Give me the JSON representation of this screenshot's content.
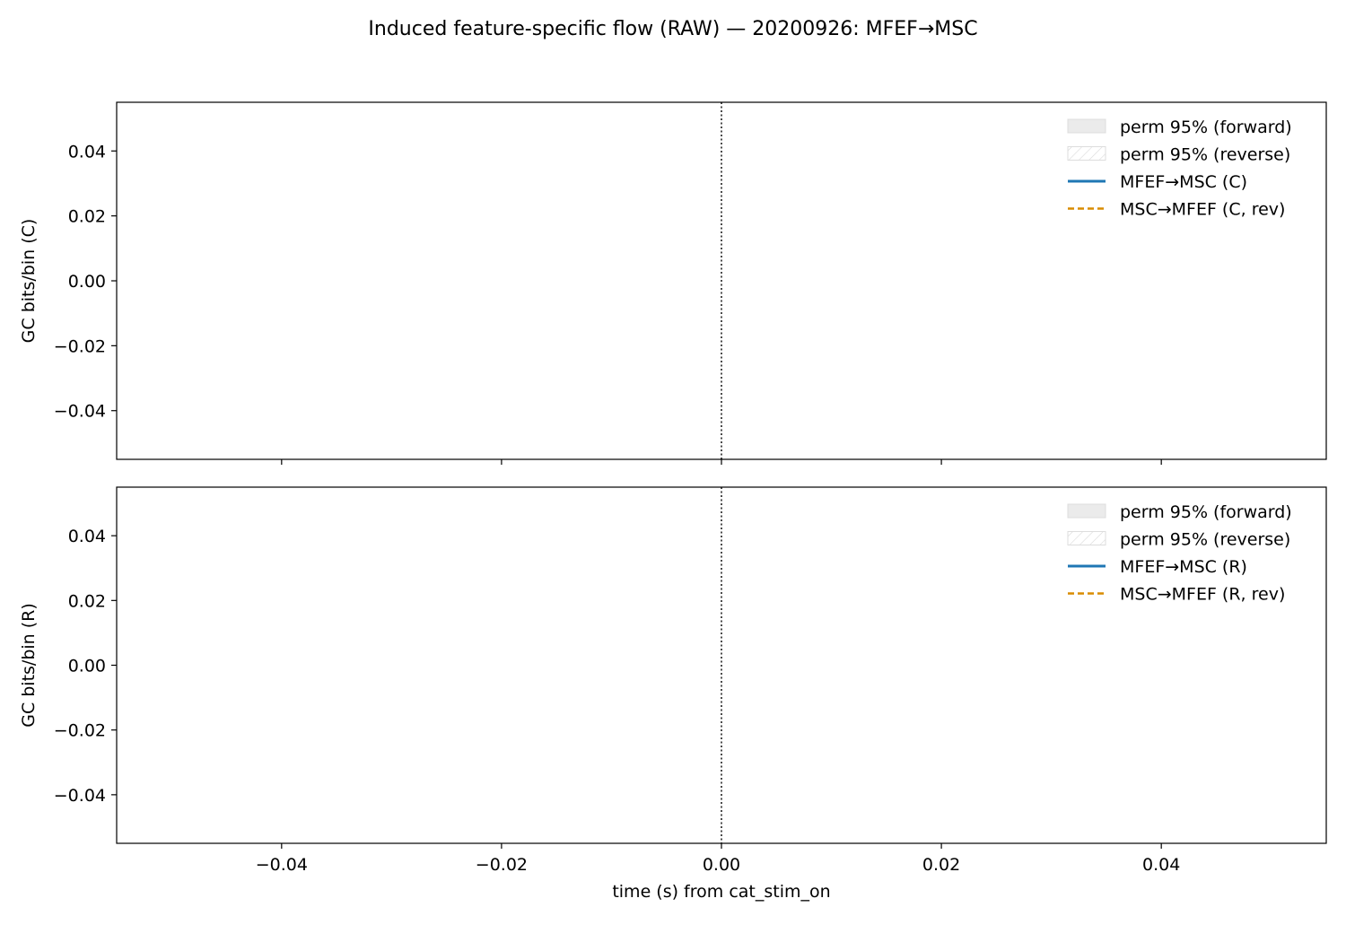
{
  "figure": {
    "title": "Induced feature-specific flow (RAW) — 20200926: MFEF→MSC"
  },
  "colors": {
    "forward": "#1f77b4",
    "reverse": "#d98c00",
    "perm_fill": "#ebebeb",
    "perm_edge": "#dddddd"
  },
  "chart_data": [
    {
      "type": "line",
      "panel": "top",
      "xlabel": "",
      "ylabel": "GC bits/bin (C)",
      "xlim": [
        -0.055,
        0.055
      ],
      "ylim": [
        -0.055,
        0.055
      ],
      "xticks": [
        -0.04,
        -0.02,
        0.0,
        0.02,
        0.04
      ],
      "xtick_labels": [],
      "yticks": [
        0.04,
        0.02,
        0.0,
        -0.02,
        -0.04
      ],
      "ytick_labels": [
        "0.04",
        "0.02",
        "0.00",
        "−0.02",
        "−0.04"
      ],
      "vline_x": 0.0,
      "grid": false,
      "legend_position": "upper right",
      "legend": [
        {
          "label": "perm 95% (forward)",
          "kind": "patch"
        },
        {
          "label": "perm 95% (reverse)",
          "kind": "hatch"
        },
        {
          "label": "MFEF→MSC (C)",
          "kind": "solid"
        },
        {
          "label": "MSC→MFEF (C, rev)",
          "kind": "dashed"
        }
      ],
      "series": [
        {
          "name": "MFEF→MSC (C)",
          "x": [],
          "y": []
        },
        {
          "name": "MSC→MFEF (C, rev)",
          "x": [],
          "y": []
        }
      ]
    },
    {
      "type": "line",
      "panel": "bottom",
      "xlabel": "time (s) from cat_stim_on",
      "ylabel": "GC bits/bin (R)",
      "xlim": [
        -0.055,
        0.055
      ],
      "ylim": [
        -0.055,
        0.055
      ],
      "xticks": [
        -0.04,
        -0.02,
        0.0,
        0.02,
        0.04
      ],
      "xtick_labels": [
        "−0.04",
        "−0.02",
        "0.00",
        "0.02",
        "0.04"
      ],
      "yticks": [
        0.04,
        0.02,
        0.0,
        -0.02,
        -0.04
      ],
      "ytick_labels": [
        "0.04",
        "0.02",
        "0.00",
        "−0.02",
        "−0.04"
      ],
      "vline_x": 0.0,
      "grid": false,
      "legend_position": "upper right",
      "legend": [
        {
          "label": "perm 95% (forward)",
          "kind": "patch"
        },
        {
          "label": "perm 95% (reverse)",
          "kind": "hatch"
        },
        {
          "label": "MFEF→MSC (R)",
          "kind": "solid"
        },
        {
          "label": "MSC→MFEF (R, rev)",
          "kind": "dashed"
        }
      ],
      "series": [
        {
          "name": "MFEF→MSC (R)",
          "x": [],
          "y": []
        },
        {
          "name": "MSC→MFEF (R, rev)",
          "x": [],
          "y": []
        }
      ]
    }
  ]
}
